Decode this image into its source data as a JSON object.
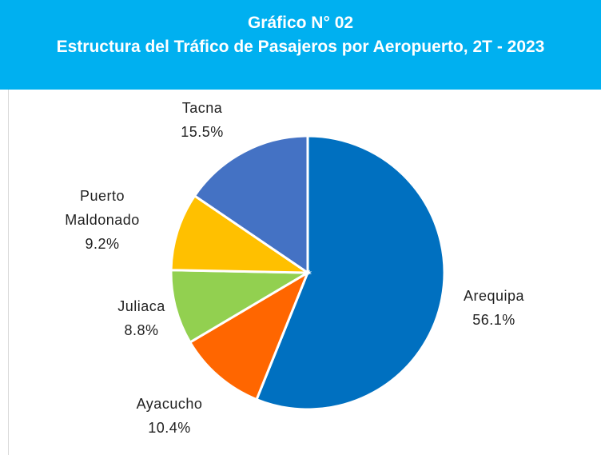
{
  "chart_data": {
    "type": "pie",
    "title": "Gráfico N° 02",
    "subtitle": "Estructura del Tráfico de Pasajeros por Aeropuerto, 2T - 2023",
    "categories": [
      "Arequipa",
      "Ayacucho",
      "Juliaca",
      "Puerto Maldonado",
      "Tacna"
    ],
    "values": [
      56.1,
      10.4,
      8.8,
      9.2,
      15.5
    ],
    "value_labels": [
      "56.1%",
      "10.4%",
      "8.8%",
      "9.2%",
      "15.5%"
    ],
    "colors": [
      "#0070c0",
      "#ff6600",
      "#92d050",
      "#ffc000",
      "#4472c4"
    ]
  }
}
